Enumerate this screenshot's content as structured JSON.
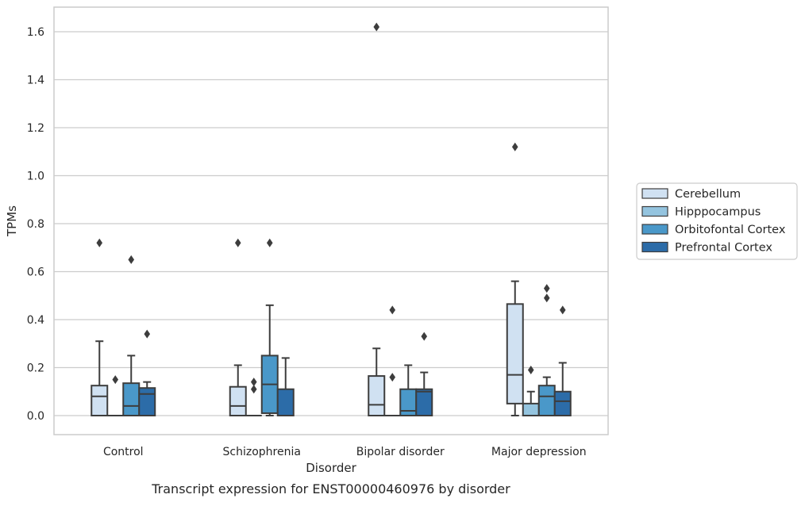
{
  "caption": "Transcript expression for ENST00000460976 by disorder",
  "chart_data": {
    "type": "boxplot",
    "title": "",
    "xlabel": "Disorder",
    "ylabel": "TPMs",
    "ylim": [
      -0.08,
      1.7
    ],
    "yticks": [
      0.0,
      0.2,
      0.4,
      0.6,
      0.8,
      1.0,
      1.2,
      1.4,
      1.6
    ],
    "ytick_labels": [
      "0.0",
      "0.2",
      "0.4",
      "0.6",
      "0.8",
      "1.0",
      "1.2",
      "1.4",
      "1.6"
    ],
    "grid": "horizontal",
    "legend_placement": "right, outside plot",
    "categories": [
      "Control",
      "Schizophrenia",
      "Bipolar disorder",
      "Major depression"
    ],
    "series": [
      {
        "name": "Cerebellum",
        "color": "#d0e1f2",
        "boxes": [
          {
            "q1": 0.0,
            "median": 0.08,
            "q3": 0.125,
            "whisker_low": 0.0,
            "whisker_high": 0.31,
            "outliers": [
              0.72
            ]
          },
          {
            "q1": 0.0,
            "median": 0.04,
            "q3": 0.12,
            "whisker_low": 0.0,
            "whisker_high": 0.21,
            "outliers": [
              0.72
            ]
          },
          {
            "q1": 0.0,
            "median": 0.045,
            "q3": 0.165,
            "whisker_low": 0.0,
            "whisker_high": 0.28,
            "outliers": [
              1.62
            ]
          },
          {
            "q1": 0.05,
            "median": 0.17,
            "q3": 0.465,
            "whisker_low": 0.0,
            "whisker_high": 0.56,
            "outliers": [
              1.12
            ]
          }
        ]
      },
      {
        "name": "Hipppocampus",
        "color": "#94c4df",
        "boxes": [
          {
            "q1": 0.0,
            "median": 0.0,
            "q3": 0.0,
            "whisker_low": 0.0,
            "whisker_high": 0.0,
            "outliers": [
              0.15
            ]
          },
          {
            "q1": 0.0,
            "median": 0.0,
            "q3": 0.0,
            "whisker_low": 0.0,
            "whisker_high": 0.0,
            "outliers": [
              0.11,
              0.14
            ]
          },
          {
            "q1": 0.0,
            "median": 0.0,
            "q3": 0.0,
            "whisker_low": 0.0,
            "whisker_high": 0.0,
            "outliers": [
              0.16,
              0.44
            ]
          },
          {
            "q1": 0.0,
            "median": 0.0,
            "q3": 0.05,
            "whisker_low": 0.0,
            "whisker_high": 0.1,
            "outliers": [
              0.19
            ]
          }
        ]
      },
      {
        "name": "Orbitofontal Cortex",
        "color": "#4a98c9",
        "boxes": [
          {
            "q1": 0.0,
            "median": 0.04,
            "q3": 0.135,
            "whisker_low": 0.0,
            "whisker_high": 0.25,
            "outliers": [
              0.65
            ]
          },
          {
            "q1": 0.01,
            "median": 0.13,
            "q3": 0.25,
            "whisker_low": 0.0,
            "whisker_high": 0.46,
            "outliers": [
              0.72
            ]
          },
          {
            "q1": 0.0,
            "median": 0.02,
            "q3": 0.11,
            "whisker_low": 0.0,
            "whisker_high": 0.21,
            "outliers": []
          },
          {
            "q1": 0.0,
            "median": 0.08,
            "q3": 0.125,
            "whisker_low": 0.0,
            "whisker_high": 0.16,
            "outliers": [
              0.49,
              0.53
            ]
          }
        ]
      },
      {
        "name": "Prefrontal Cortex",
        "color": "#2c6ca8",
        "boxes": [
          {
            "q1": 0.0,
            "median": 0.09,
            "q3": 0.115,
            "whisker_low": 0.0,
            "whisker_high": 0.14,
            "outliers": [
              0.34
            ]
          },
          {
            "q1": 0.0,
            "median": 0.0,
            "q3": 0.11,
            "whisker_low": 0.0,
            "whisker_high": 0.24,
            "outliers": []
          },
          {
            "q1": 0.0,
            "median": 0.1,
            "q3": 0.11,
            "whisker_low": 0.0,
            "whisker_high": 0.18,
            "outliers": [
              0.33
            ]
          },
          {
            "q1": 0.0,
            "median": 0.06,
            "q3": 0.1,
            "whisker_low": 0.0,
            "whisker_high": 0.22,
            "outliers": [
              0.44
            ]
          }
        ]
      }
    ]
  }
}
